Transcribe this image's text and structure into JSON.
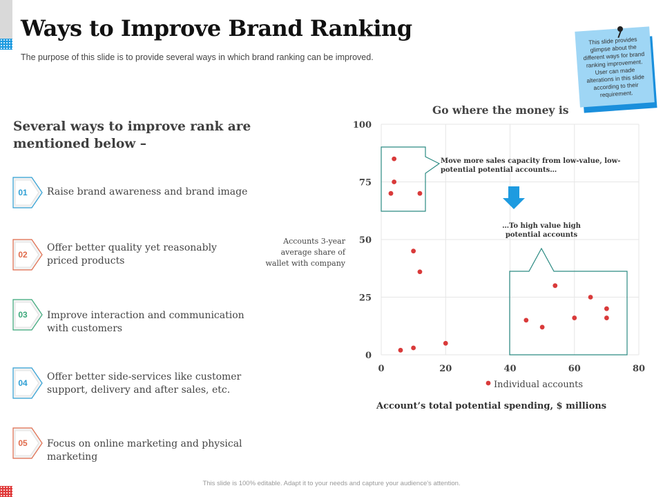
{
  "slide": {
    "title": "Ways to Improve Brand Ranking",
    "subtitle": "The purpose of this slide is to provide  several  ways in which brand ranking can be improved.",
    "note": "This slide provides glimpse about the different ways for brand ranking improvement. User can made alterations in this slide according to their requirement.",
    "footer": "This slide is 100% editable. Adapt it to your needs and capture your audience's attention."
  },
  "left": {
    "heading": "Several ways to improve rank are mentioned below –",
    "steps": [
      {
        "num": "01",
        "text": "Raise brand awareness and brand image",
        "color": "#2e9fd4"
      },
      {
        "num": "02",
        "text": "Offer better quality yet reasonably priced products",
        "color": "#e06a4a"
      },
      {
        "num": "03",
        "text": "Improve interaction and communication with customers",
        "color": "#3aa87a"
      },
      {
        "num": "04",
        "text": "Offer better side-services like customer support, delivery and after sales, etc.",
        "color": "#2e9fd4"
      },
      {
        "num": "05",
        "text": "Focus on online marketing and physical marketing",
        "color": "#e06a4a"
      }
    ]
  },
  "chart_data": {
    "type": "scatter",
    "title": "Go where the money is",
    "xlabel": "Account’s total potential spending, $ millions",
    "ylabel": "Accounts 3-year average share of wallet with company",
    "xlim": [
      0,
      80
    ],
    "ylim": [
      0,
      100
    ],
    "xticks": [
      0,
      20,
      40,
      60,
      80
    ],
    "yticks": [
      0,
      25,
      50,
      75,
      100
    ],
    "grid": true,
    "legend": "bottom",
    "series": [
      {
        "name": "Individual accounts",
        "color": "#d93a3a",
        "points": [
          [
            4,
            85
          ],
          [
            4,
            75
          ],
          [
            3,
            70
          ],
          [
            12,
            70
          ],
          [
            10,
            45
          ],
          [
            12,
            36
          ],
          [
            6,
            2
          ],
          [
            10,
            3
          ],
          [
            20,
            5
          ],
          [
            45,
            15
          ],
          [
            50,
            12
          ],
          [
            54,
            30
          ],
          [
            60,
            16
          ],
          [
            65,
            25
          ],
          [
            70,
            20
          ],
          [
            70,
            16
          ]
        ]
      }
    ],
    "annotations": {
      "top": "Move more sales capacity from low-value, low-potential potential accounts…",
      "middle": "…To high value high potential accounts"
    },
    "colors": {
      "box": "#2a8a82",
      "arrow": "#1e9be0"
    }
  }
}
